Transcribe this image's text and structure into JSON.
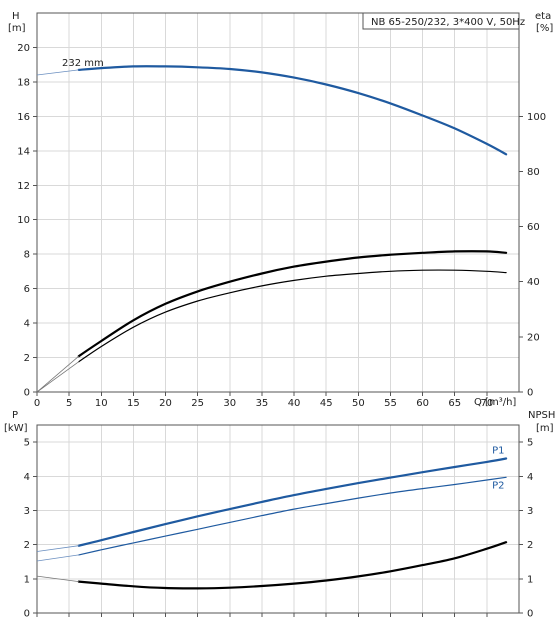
{
  "chart_data": [
    {
      "type": "line",
      "panel": "top",
      "title": "NB 65-250/232, 3*400 V, 50Hz",
      "ylabel_left": "H",
      "ylabel_left_unit": "[m]",
      "ylabel_right": "eta",
      "ylabel_right_unit": "[%]",
      "xlabel": "Q [m³/h]",
      "xlim": [
        0,
        75
      ],
      "xticks": [
        0,
        5,
        10,
        15,
        20,
        25,
        30,
        35,
        40,
        45,
        50,
        55,
        60,
        65,
        70
      ],
      "ylim_left": [
        0,
        22
      ],
      "yticks_left": [
        0,
        2,
        4,
        6,
        8,
        10,
        12,
        14,
        16,
        18,
        20
      ],
      "ylim_right": [
        0,
        137.5
      ],
      "yticks_right": [
        0,
        20,
        40,
        60,
        80,
        100
      ],
      "grid": true,
      "series": [
        {
          "name": "232 mm",
          "axis": "left",
          "color": "#1f5aa0",
          "x": [
            6.5,
            10,
            15,
            20,
            25,
            30,
            35,
            40,
            45,
            50,
            55,
            60,
            65,
            70,
            73
          ],
          "y": [
            18.7,
            18.8,
            18.9,
            18.9,
            18.85,
            18.75,
            18.55,
            18.25,
            17.85,
            17.35,
            16.75,
            16.05,
            15.3,
            14.4,
            13.8
          ],
          "lead_in": {
            "x": [
              0,
              6.5
            ],
            "y": [
              18.4,
              18.7
            ]
          }
        },
        {
          "name": "",
          "axis": "right",
          "color": "#000000",
          "x": [
            6.5,
            10,
            15,
            20,
            25,
            30,
            35,
            40,
            45,
            50,
            55,
            60,
            65,
            70,
            73
          ],
          "y": [
            13,
            18.5,
            26,
            32,
            36.5,
            40,
            43,
            45.5,
            47.3,
            48.8,
            49.8,
            50.5,
            51,
            51,
            50.5
          ],
          "lead_in": {
            "x": [
              0,
              6.5
            ],
            "y": [
              0,
              13
            ]
          }
        },
        {
          "name": "",
          "axis": "right",
          "color": "#000000",
          "x": [
            6.5,
            10,
            15,
            20,
            25,
            30,
            35,
            40,
            45,
            50,
            55,
            60,
            65,
            70,
            73
          ],
          "y": [
            11,
            16.5,
            23.5,
            29,
            33,
            36,
            38.5,
            40.5,
            42,
            43,
            43.8,
            44.2,
            44.2,
            43.8,
            43.3
          ],
          "lead_in": {
            "x": [
              0,
              6.5
            ],
            "y": [
              0,
              11
            ]
          }
        }
      ]
    },
    {
      "type": "line",
      "panel": "bottom",
      "ylabel_left": "P",
      "ylabel_left_unit": "[kW]",
      "ylabel_right": "NPSH",
      "ylabel_right_unit": "[m]",
      "xlim": [
        0,
        75
      ],
      "ylim_left": [
        0,
        5.5
      ],
      "yticks_left": [
        0,
        1,
        2,
        3,
        4,
        5
      ],
      "ylim_right": [
        0,
        5.5
      ],
      "yticks_right": [
        0,
        1,
        2,
        3,
        4,
        5
      ],
      "grid": true,
      "series": [
        {
          "name": "P1",
          "axis": "left",
          "color": "#1f5aa0",
          "x": [
            6.5,
            10,
            15,
            20,
            25,
            30,
            35,
            40,
            45,
            50,
            55,
            60,
            65,
            70,
            73
          ],
          "y": [
            1.97,
            2.13,
            2.37,
            2.6,
            2.83,
            3.04,
            3.25,
            3.45,
            3.63,
            3.8,
            3.96,
            4.12,
            4.27,
            4.42,
            4.52
          ],
          "lead_in": {
            "x": [
              0,
              6.5
            ],
            "y": [
              1.8,
              1.97
            ]
          }
        },
        {
          "name": "P2",
          "axis": "left",
          "color": "#1f5aa0",
          "x": [
            6.5,
            10,
            15,
            20,
            25,
            30,
            35,
            40,
            45,
            50,
            55,
            60,
            65,
            70,
            73
          ],
          "y": [
            1.7,
            1.85,
            2.05,
            2.25,
            2.45,
            2.65,
            2.85,
            3.04,
            3.2,
            3.36,
            3.51,
            3.64,
            3.76,
            3.89,
            3.97
          ],
          "lead_in": {
            "x": [
              0,
              6.5
            ],
            "y": [
              1.52,
              1.7
            ]
          }
        },
        {
          "name": "",
          "axis": "right",
          "color": "#000000",
          "x": [
            6.5,
            10,
            15,
            20,
            25,
            30,
            35,
            40,
            45,
            50,
            55,
            60,
            65,
            70,
            73
          ],
          "y": [
            0.92,
            0.86,
            0.78,
            0.73,
            0.72,
            0.74,
            0.79,
            0.86,
            0.95,
            1.07,
            1.22,
            1.4,
            1.6,
            1.88,
            2.07
          ],
          "lead_in": {
            "x": [
              0,
              6.5
            ],
            "y": [
              1.08,
              0.92
            ]
          }
        }
      ]
    }
  ]
}
